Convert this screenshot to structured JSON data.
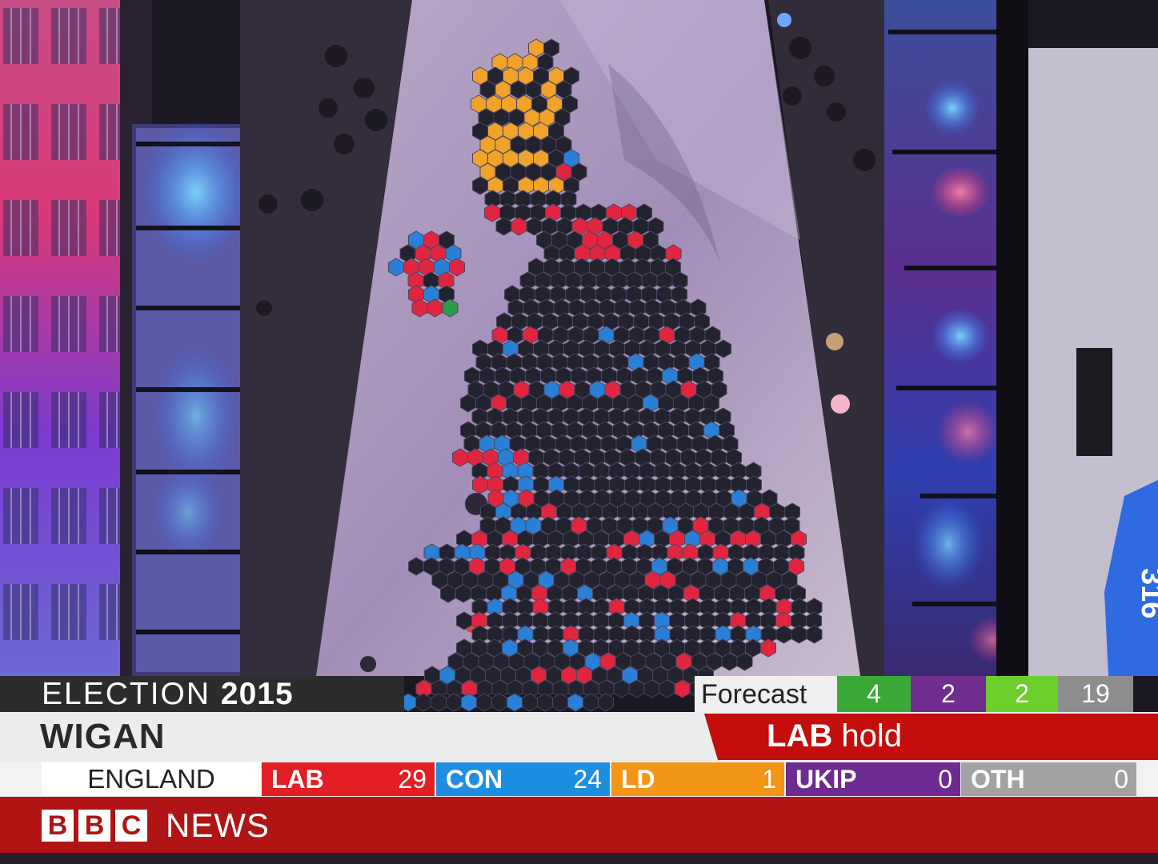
{
  "broadcast": {
    "programme_left": "ELECTION",
    "programme_year": "2015",
    "constituency": "WIGAN",
    "result_party": "LAB",
    "result_status": "hold",
    "forecast_label": "Forecast",
    "forecast": [
      {
        "value": "4",
        "color": "#3aa837"
      },
      {
        "value": "2",
        "color": "#6f2d8f"
      },
      {
        "value": "2",
        "color": "#6ccf2c"
      },
      {
        "value": "19",
        "color": "#8d8d8d"
      }
    ],
    "region": "ENGLAND",
    "tally": [
      {
        "party": "LAB",
        "seats": "29",
        "color": "#e31e24"
      },
      {
        "party": "CON",
        "seats": "24",
        "color": "#1e8ee0"
      },
      {
        "party": "LD",
        "seats": "1",
        "color": "#f39517"
      },
      {
        "party": "UKIP",
        "seats": "0",
        "color": "#6d2b91"
      },
      {
        "party": "OTH",
        "seats": "0",
        "color": "#a2a2a2"
      }
    ],
    "channel_letters": [
      "B",
      "B",
      "C"
    ],
    "channel_name": "NEWS"
  },
  "screen_number": "316"
}
